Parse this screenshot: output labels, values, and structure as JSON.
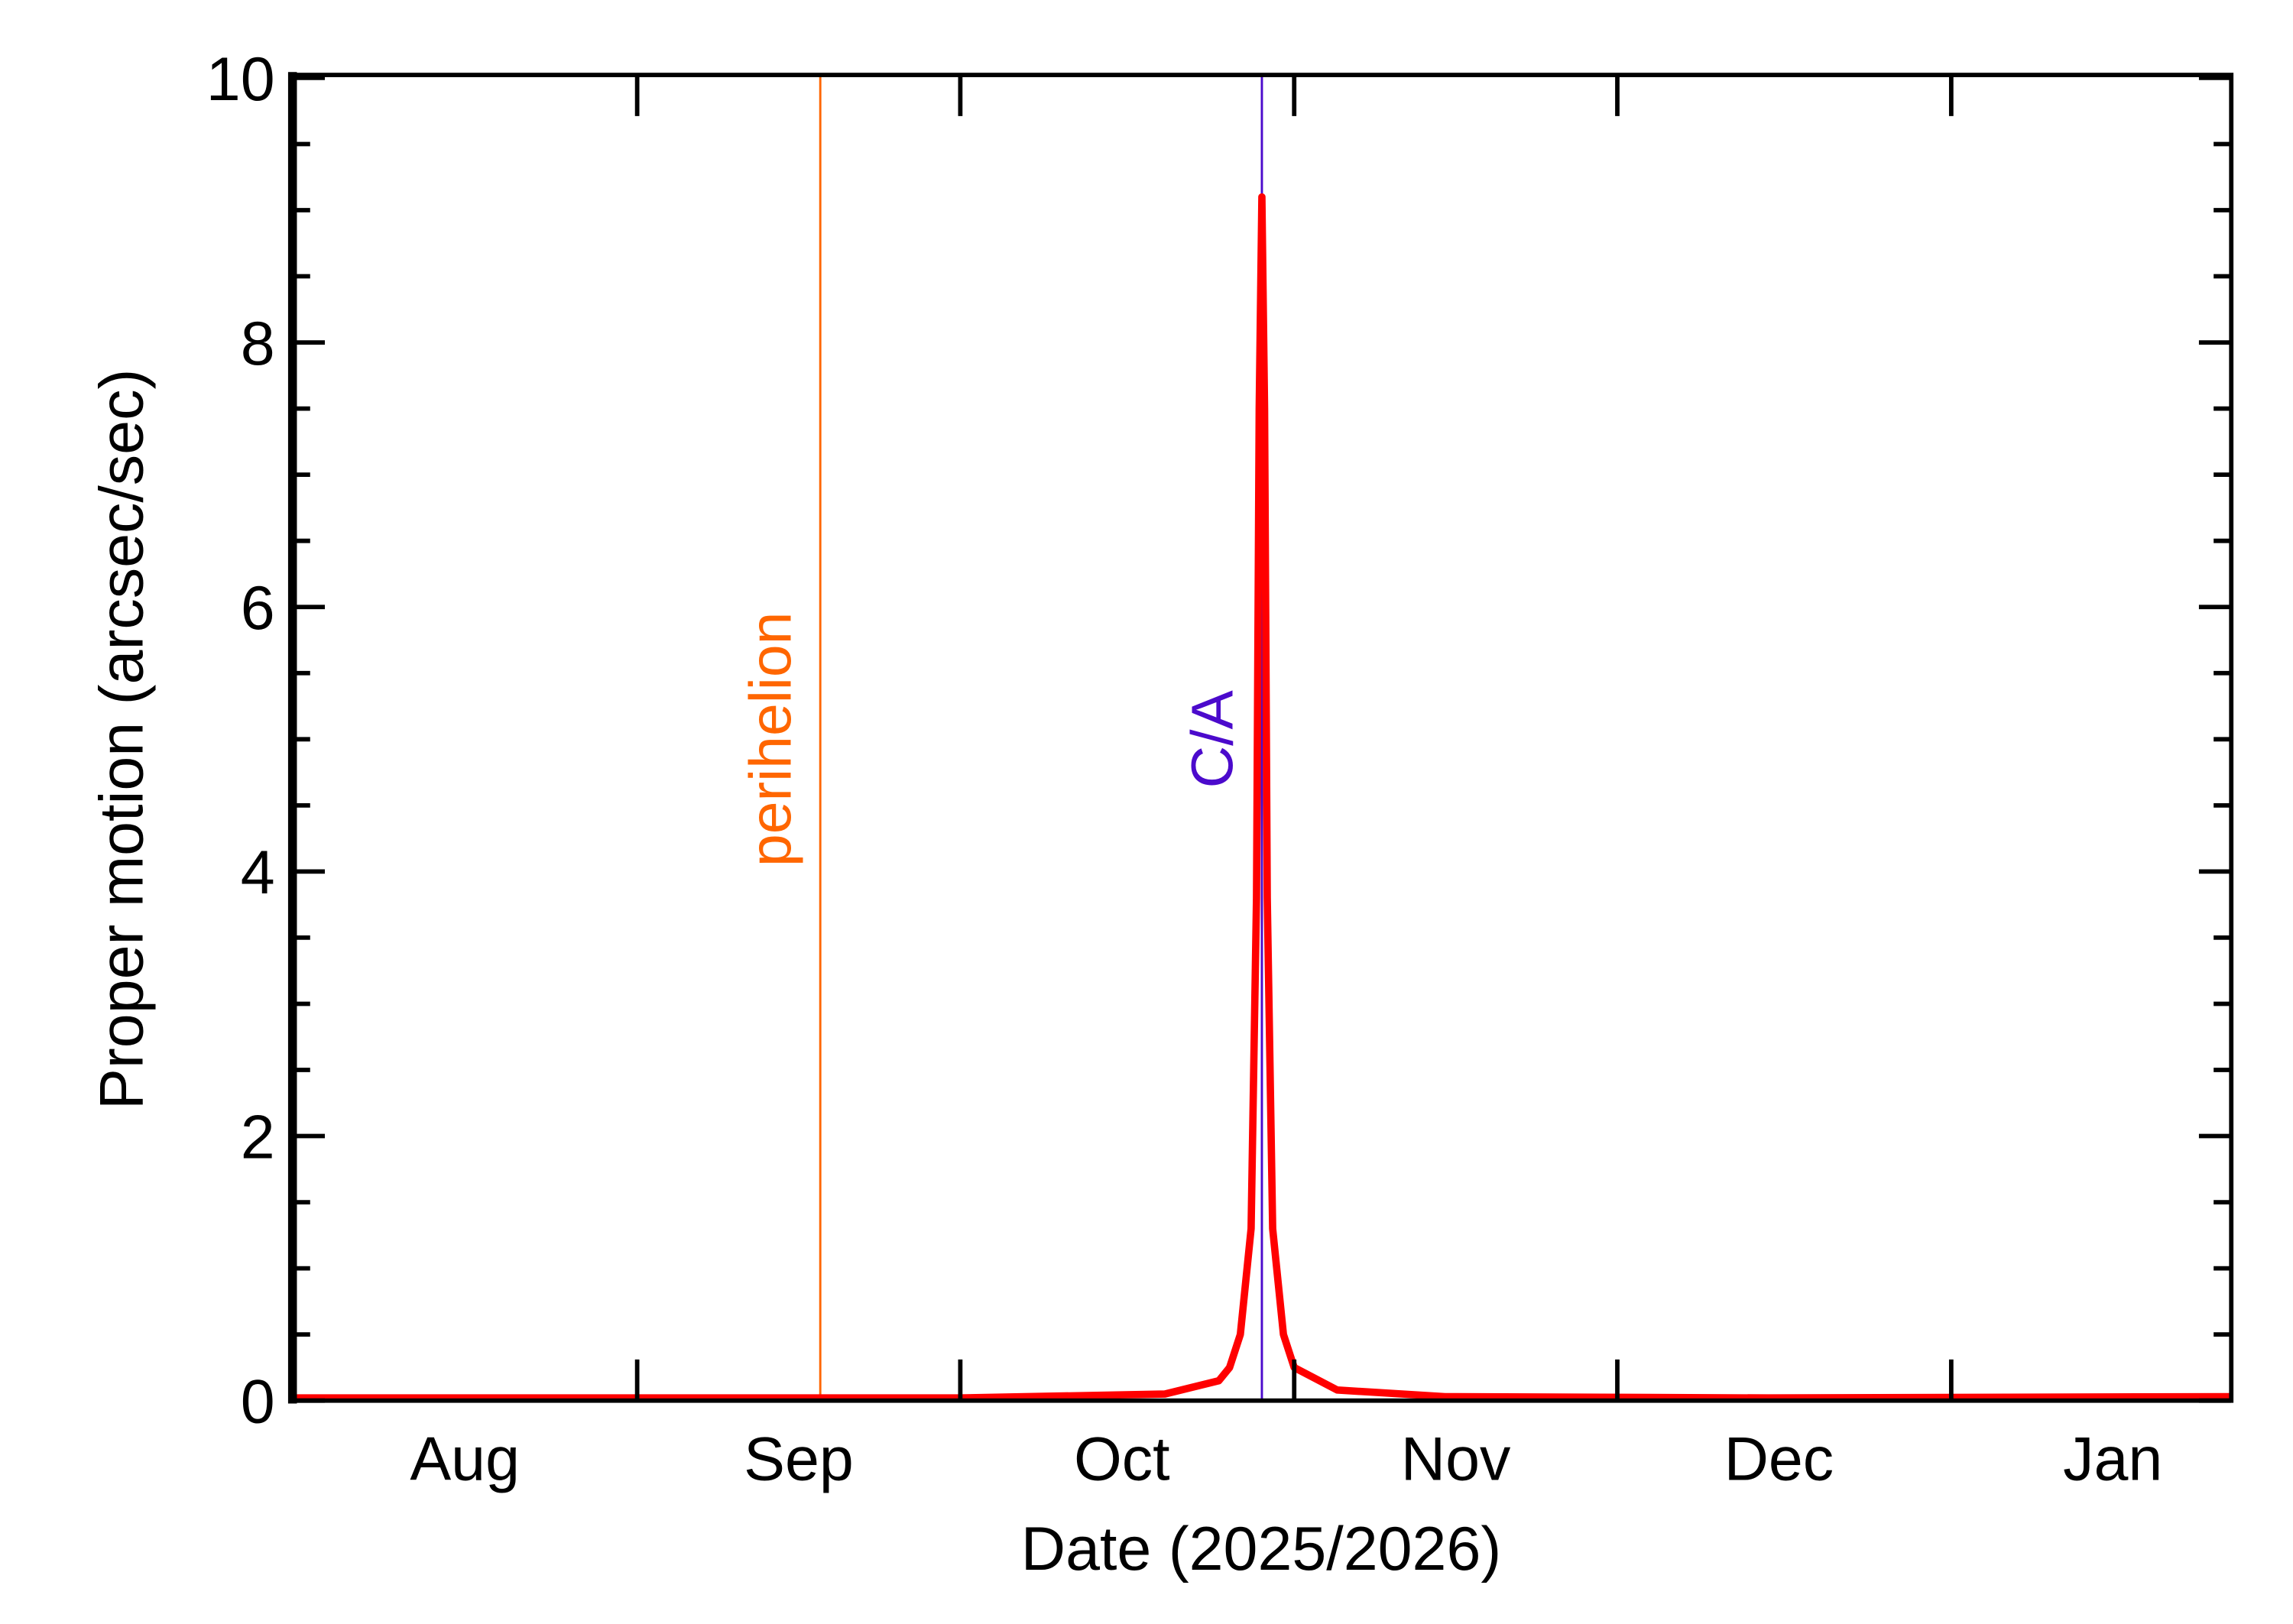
{
  "chart_data": {
    "type": "line",
    "title": "",
    "xlabel": "Date (2025/2026)",
    "ylabel": "Proper motion (arcsec/sec)",
    "xlim": [
      "2025-07-31",
      "2026-01-27"
    ],
    "ylim": [
      0,
      10
    ],
    "y_ticks": [
      0,
      2,
      4,
      6,
      8,
      10
    ],
    "y_tick_labels": [
      "0",
      "2",
      "4",
      "6",
      "8",
      "10"
    ],
    "x_month_ticks": [
      "2025-09-01",
      "2025-10-01",
      "2025-11-01",
      "2025-12-01",
      "2026-01-01"
    ],
    "x_labels": [
      {
        "text": "Aug",
        "date": "2025-08-16"
      },
      {
        "text": "Sep",
        "date": "2025-09-16"
      },
      {
        "text": "Oct",
        "date": "2025-10-16"
      },
      {
        "text": "Nov",
        "date": "2025-11-16"
      },
      {
        "text": "Dec",
        "date": "2025-12-16"
      },
      {
        "text": "Jan",
        "date": "2026-01-16"
      }
    ],
    "grid": false,
    "series": [
      {
        "color": "#ff0000",
        "x": [
          "2025-07-31",
          "2025-09-01",
          "2025-10-01",
          "2025-10-20",
          "2025-10-25",
          "2025-10-26",
          "2025-10-27",
          "2025-10-28T00:00",
          "2025-10-28T12:00",
          "2025-10-28T18:00",
          "2025-10-29T00:00",
          "2025-10-29T06:00",
          "2025-10-29T12:00",
          "2025-10-30T00:00",
          "2025-10-31T00:00",
          "2025-11-01T00:00",
          "2025-11-05",
          "2025-11-15",
          "2025-12-15",
          "2026-01-27"
        ],
        "y": [
          0.02,
          0.02,
          0.02,
          0.05,
          0.15,
          0.25,
          0.5,
          1.3,
          3.8,
          7.5,
          9.1,
          7.5,
          3.8,
          1.3,
          0.5,
          0.25,
          0.08,
          0.03,
          0.02,
          0.03
        ]
      }
    ],
    "annotations": [
      {
        "text": "perihelion",
        "date": "2025-09-18",
        "color": "#ff6600"
      },
      {
        "text": "C/A",
        "date": "2025-10-29",
        "color": "#4b0acc"
      }
    ]
  }
}
